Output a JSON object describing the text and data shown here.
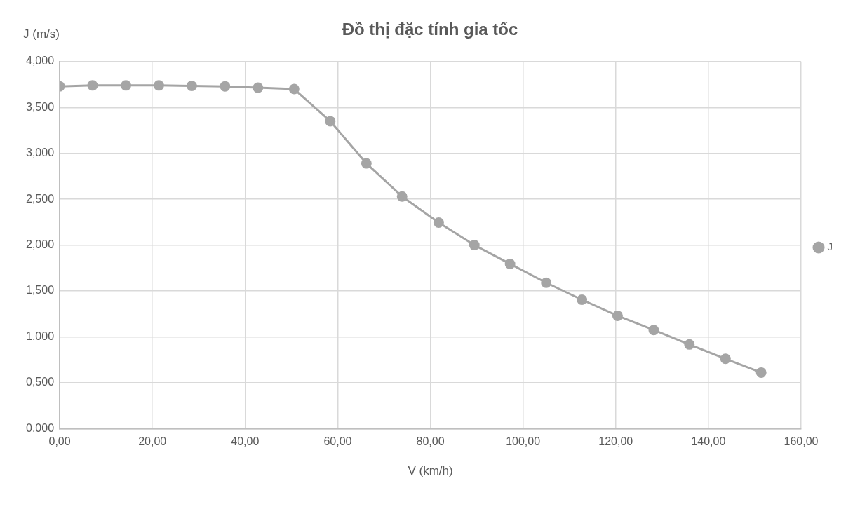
{
  "chart_data": {
    "type": "line",
    "title": "Đồ thị đặc tính gia tốc",
    "xlabel": "V (km/h)",
    "ylabel": "J (m/s)",
    "x": [
      0,
      7.1,
      14.3,
      21.4,
      28.5,
      35.7,
      42.8,
      50.6,
      58.4,
      66.2,
      73.9,
      81.8,
      89.5,
      97.2,
      105,
      112.7,
      120.4,
      128.2,
      135.9,
      143.7,
      151.4
    ],
    "series": [
      {
        "name": "J",
        "color": "#a5a5a5",
        "values": [
          3.73,
          3.74,
          3.74,
          3.74,
          3.735,
          3.73,
          3.715,
          3.7,
          3.35,
          2.89,
          2.53,
          2.245,
          2.0,
          1.795,
          1.59,
          1.405,
          1.23,
          1.075,
          0.917,
          0.761,
          0.611
        ]
      }
    ],
    "xlim": [
      0,
      160
    ],
    "xticks": [
      {
        "value": 0,
        "label": "0,00"
      },
      {
        "value": 20,
        "label": "20,00"
      },
      {
        "value": 40,
        "label": "40,00"
      },
      {
        "value": 60,
        "label": "60,00"
      },
      {
        "value": 80,
        "label": "80,00"
      },
      {
        "value": 100,
        "label": "100,00"
      },
      {
        "value": 120,
        "label": "120,00"
      },
      {
        "value": 140,
        "label": "140,00"
      },
      {
        "value": 160,
        "label": "160,00"
      }
    ],
    "ylim": [
      0,
      4
    ],
    "yticks": [
      {
        "value": 0,
        "label": "0,000"
      },
      {
        "value": 0.5,
        "label": "0,500"
      },
      {
        "value": 1,
        "label": "1,000"
      },
      {
        "value": 1.5,
        "label": "1,500"
      },
      {
        "value": 2,
        "label": "2,000"
      },
      {
        "value": 2.5,
        "label": "2,500"
      },
      {
        "value": 3,
        "label": "3,000"
      },
      {
        "value": 3.5,
        "label": "3,500"
      },
      {
        "value": 4,
        "label": "4,000"
      }
    ],
    "grid": true,
    "legend": "right",
    "marker": "circle",
    "line_style": "solid"
  }
}
